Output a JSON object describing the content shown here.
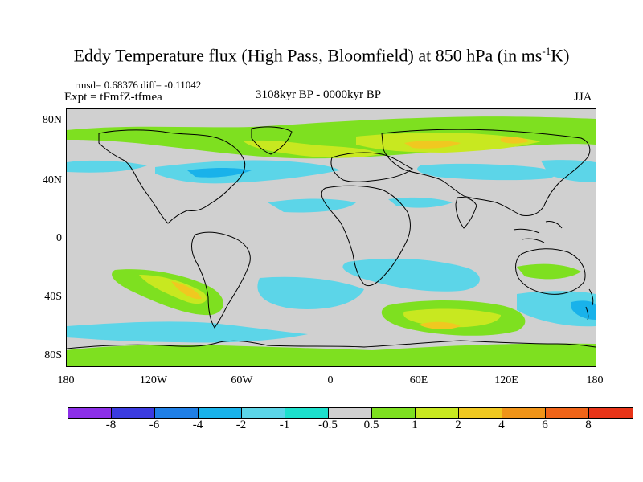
{
  "title": "Eddy Temperature flux (High Pass, Bloomfield) at 850 hPa (in ms",
  "title_sup": "-1",
  "title_end": "K)",
  "stats": "rmsd= 0.68376 diff= -0.11042",
  "expt": "Expt = tFmfZ-tfmea",
  "period": "3108kyr BP - 0000kyr BP",
  "season": "JJA",
  "lat_labels": [
    "80N",
    "40N",
    "0",
    "40S",
    "80S"
  ],
  "lon_labels": [
    "180",
    "120W",
    "60W",
    "0",
    "60E",
    "120E",
    "180"
  ],
  "colorbar": {
    "colors": [
      "#8c2fe8",
      "#3b3be0",
      "#1f7fe6",
      "#19b2ea",
      "#5cd5e8",
      "#1ce0cc",
      "#d0d0d0",
      "#7ee020",
      "#c8e820",
      "#f0c820",
      "#f09418",
      "#f06418",
      "#e83418"
    ],
    "labels": [
      "-8",
      "-6",
      "-4",
      "-2",
      "-1",
      "-0.5",
      "0.5",
      "1",
      "2",
      "4",
      "6",
      "8"
    ]
  }
}
